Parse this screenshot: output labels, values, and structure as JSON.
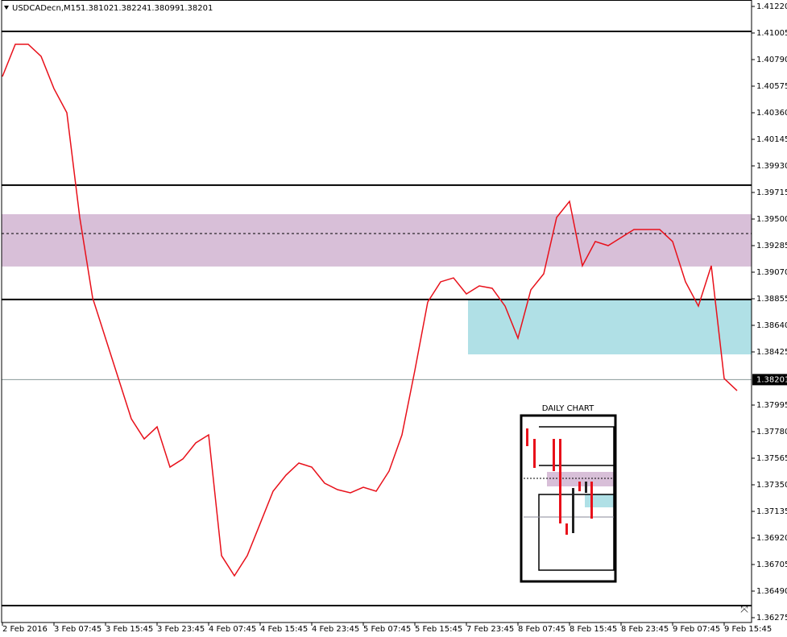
{
  "chart_data": {
    "type": "line",
    "title": "USDCADecn,M15",
    "quote": [
      1.38102,
      1.38224,
      1.38099,
      1.38201
    ],
    "categories": [
      "2 Feb 2016",
      null,
      null,
      null,
      "3 Feb 07:45",
      null,
      null,
      null,
      "3 Feb 15:45",
      null,
      null,
      null,
      "3 Feb 23:45",
      null,
      null,
      null,
      "4 Feb 07:45",
      null,
      null,
      null,
      "4 Feb 15:45",
      null,
      null,
      null,
      "4 Feb 23:45",
      null,
      null,
      null,
      "5 Feb 07:45",
      null,
      null,
      null,
      "5 Feb 15:45",
      null,
      null,
      null,
      "7 Feb 23:45",
      null,
      null,
      null,
      "8 Feb 07:45",
      null,
      null,
      null,
      "8 Feb 15:45",
      null,
      null,
      null,
      "8 Feb 23:45",
      null,
      null,
      null,
      "9 Feb 07:45",
      null,
      null,
      null,
      "9 Feb 15:45",
      null
    ],
    "series": [
      {
        "name": "USDCADecn,M15",
        "color": "#e8101a",
        "values": [
          1.40653,
          1.40914,
          1.40914,
          1.40816,
          1.40555,
          1.4036,
          1.39513,
          1.38862,
          1.38536,
          1.3821,
          1.37884,
          1.37721,
          1.37819,
          1.37493,
          1.37559,
          1.37689,
          1.37754,
          1.36777,
          1.36614,
          1.36777,
          1.37037,
          1.37298,
          1.37428,
          1.37526,
          1.37493,
          1.37363,
          1.37311,
          1.37285,
          1.3733,
          1.37298,
          1.37461,
          1.37754,
          1.38275,
          1.38829,
          1.38992,
          1.39024,
          1.38894,
          1.38959,
          1.3894,
          1.38796,
          1.38536,
          1.38927,
          1.39057,
          1.39513,
          1.39643,
          1.39122,
          1.39318,
          1.39285,
          1.3935,
          1.39415,
          1.39415,
          1.39415,
          1.39318,
          1.38992,
          1.38796,
          1.39122,
          1.3821,
          1.38112
        ]
      }
    ],
    "ylim": [
      1.36236,
      1.41272
    ],
    "yticks": [
      {
        "value": 1.4122,
        "label": "1.41220"
      },
      1.41005,
      {
        "value": 1.4079,
        "label": "1.40790"
      },
      1.40575,
      {
        "value": 1.4036,
        "label": "1.40360"
      },
      1.40145,
      {
        "value": 1.3993,
        "label": "1.39930"
      },
      1.39715,
      {
        "value": 1.395,
        "label": "1.39500"
      },
      1.39285,
      {
        "value": 1.3907,
        "label": "1.39070"
      },
      1.38855,
      {
        "value": 1.3864,
        "label": "1.38640"
      },
      1.38425,
      1.37995,
      {
        "value": 1.3778,
        "label": "1.37780"
      },
      1.37565,
      {
        "value": 1.3735,
        "label": "1.37350"
      },
      1.37135,
      {
        "value": 1.3692,
        "label": "1.36920"
      },
      1.36705,
      {
        "value": 1.3649,
        "label": "1.36490"
      },
      1.36275
    ],
    "current_price": 1.38201,
    "levels": [
      1.41018,
      1.39774,
      1.38849,
      1.36373
    ],
    "zones": [
      {
        "low": 1.39116,
        "high": 1.39539,
        "mid": 1.39383,
        "color": "#d8bfd8"
      },
      {
        "low": 1.38405,
        "high": 1.38849,
        "color": "#b0e0e6"
      }
    ],
    "grid": false,
    "inset_label": "DAILY CHART"
  }
}
